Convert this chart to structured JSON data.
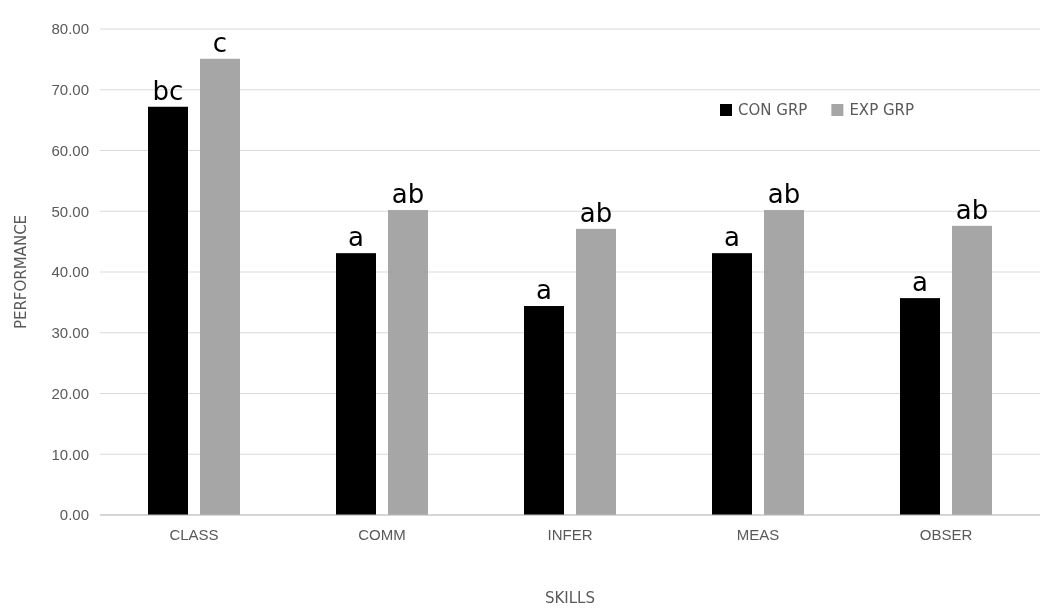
{
  "chart_data": {
    "type": "bar",
    "xlabel": "SKILLS",
    "ylabel": "PERFORMANCE",
    "categories": [
      "CLASS",
      "COMM",
      "INFER",
      "MEAS",
      "OBSER"
    ],
    "series": [
      {
        "name": "CON GRP",
        "color": "#000000",
        "values": [
          67.2,
          43.1,
          34.4,
          43.1,
          35.7
        ],
        "value_labels": [
          "bc",
          "a",
          "a",
          "a",
          "a"
        ]
      },
      {
        "name": "EXP GRP",
        "color": "#a6a6a6",
        "values": [
          75.1,
          50.2,
          47.1,
          50.2,
          47.6
        ],
        "value_labels": [
          "c",
          "ab",
          "ab",
          "ab",
          "ab"
        ]
      }
    ],
    "ylim": [
      0,
      80
    ],
    "yticks": [
      {
        "value": 0,
        "label": "0.00"
      },
      {
        "value": 10,
        "label": "10.00"
      },
      {
        "value": 20,
        "label": "20.00"
      },
      {
        "value": 30,
        "label": "30.00"
      },
      {
        "value": 40,
        "label": "40.00"
      },
      {
        "value": 50,
        "label": "50.00"
      },
      {
        "value": 60,
        "label": "60.00"
      },
      {
        "value": 70,
        "label": "70.00"
      },
      {
        "value": 80,
        "label": "80.00"
      }
    ],
    "grid": "y",
    "legend": "top right"
  }
}
